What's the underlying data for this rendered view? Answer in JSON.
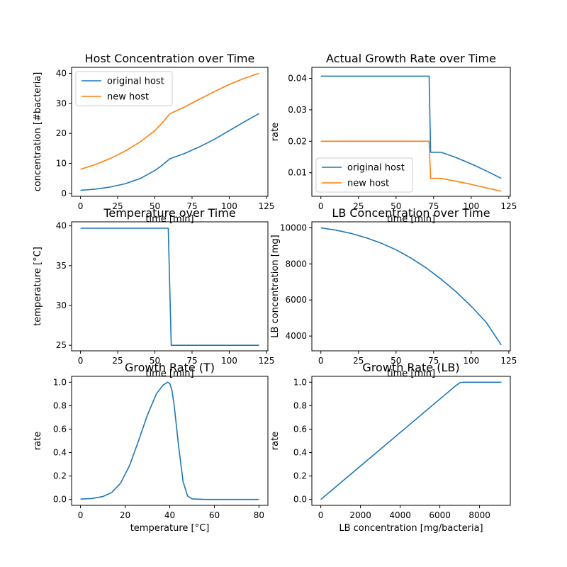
{
  "colors": {
    "series1": "#1f77b4",
    "series2": "#ff7f0e"
  },
  "chart_data": [
    {
      "type": "line",
      "title": "Host Concentration over Time",
      "xlabel": "time [min]",
      "ylabel": "concentration [#bacteria]",
      "xlim": [
        -6,
        126
      ],
      "ylim": [
        -1,
        42
      ],
      "xticks": [
        0,
        25,
        50,
        75,
        100,
        125
      ],
      "yticks": [
        0,
        10,
        20,
        30,
        40
      ],
      "legend": "upper left",
      "series": [
        {
          "name": "original host",
          "x": [
            0,
            10,
            20,
            30,
            40,
            50,
            55,
            60,
            70,
            80,
            90,
            100,
            110,
            120
          ],
          "y": [
            1.0,
            1.4,
            2.1,
            3.2,
            4.9,
            7.6,
            9.4,
            11.5,
            13.3,
            15.5,
            18.0,
            20.9,
            23.8,
            26.6
          ]
        },
        {
          "name": "new host",
          "x": [
            0,
            10,
            20,
            30,
            40,
            50,
            55,
            60,
            70,
            80,
            90,
            100,
            110,
            120
          ],
          "y": [
            8.0,
            9.6,
            11.6,
            14.1,
            17.1,
            20.9,
            23.5,
            26.5,
            28.8,
            31.4,
            33.9,
            36.3,
            38.3,
            40.0
          ]
        }
      ]
    },
    {
      "type": "line",
      "title": "Actual Growth Rate over Time",
      "xlabel": "time [min]",
      "ylabel": "rate",
      "xlim": [
        -6,
        126
      ],
      "ylim": [
        0.0025,
        0.0435
      ],
      "xticks": [
        0,
        25,
        50,
        75,
        100,
        125
      ],
      "yticks": [
        0.01,
        0.02,
        0.03,
        0.04
      ],
      "ytick_labels": [
        "0.01",
        "0.02",
        "0.03",
        "0.04"
      ],
      "legend": "lower left",
      "series": [
        {
          "name": "original host",
          "x": [
            0,
            72,
            73,
            80,
            90,
            100,
            110,
            120
          ],
          "y": [
            0.0407,
            0.0407,
            0.0165,
            0.0165,
            0.0148,
            0.0128,
            0.0106,
            0.0082
          ]
        },
        {
          "name": "new host",
          "x": [
            0,
            72,
            73,
            80,
            90,
            100,
            110,
            120
          ],
          "y": [
            0.02,
            0.02,
            0.0082,
            0.0082,
            0.0073,
            0.0063,
            0.0052,
            0.0041
          ]
        }
      ]
    },
    {
      "type": "line",
      "title": "Temperature over Time",
      "xlabel": "time [min]",
      "ylabel": "temperature [°C]",
      "xlim": [
        -6,
        126
      ],
      "ylim": [
        24.3,
        40.5
      ],
      "xticks": [
        0,
        25,
        50,
        75,
        100,
        125
      ],
      "yticks": [
        25,
        30,
        35,
        40
      ],
      "series": [
        {
          "x": [
            0,
            59,
            61,
            120
          ],
          "y": [
            39.7,
            39.7,
            25,
            25
          ]
        }
      ]
    },
    {
      "type": "line",
      "title": "LB Concentration over Time",
      "xlabel": "time [min]",
      "ylabel": "LB concentration [mg]",
      "xlim": [
        -6,
        126
      ],
      "ylim": [
        3180,
        10330
      ],
      "xticks": [
        0,
        25,
        50,
        75,
        100,
        125
      ],
      "yticks": [
        4000,
        6000,
        8000,
        10000
      ],
      "series": [
        {
          "x": [
            0,
            10,
            20,
            30,
            40,
            50,
            60,
            70,
            80,
            90,
            100,
            110,
            120
          ],
          "y": [
            10000,
            9870,
            9690,
            9450,
            9150,
            8780,
            8320,
            7780,
            7150,
            6450,
            5650,
            4760,
            3500
          ]
        }
      ]
    },
    {
      "type": "line",
      "title": "Growth Rate (T)",
      "xlabel": "temperature [°C]",
      "ylabel": "rate",
      "xlim": [
        -4,
        84
      ],
      "ylim": [
        -0.05,
        1.05
      ],
      "xticks": [
        0,
        20,
        40,
        60,
        80
      ],
      "yticks": [
        0.0,
        0.2,
        0.4,
        0.6,
        0.8,
        1.0
      ],
      "ytick_labels": [
        "0.0",
        "0.2",
        "0.4",
        "0.6",
        "0.8",
        "1.0"
      ],
      "series": [
        {
          "x": [
            0,
            5,
            10,
            14,
            18,
            22,
            26,
            30,
            34,
            37,
            39,
            40,
            41,
            42,
            44,
            46,
            48,
            50,
            55,
            60,
            70,
            80
          ],
          "y": [
            0.003,
            0.008,
            0.025,
            0.06,
            0.14,
            0.29,
            0.5,
            0.72,
            0.9,
            0.975,
            1.0,
            0.99,
            0.93,
            0.8,
            0.45,
            0.15,
            0.03,
            0.005,
            0.001,
            0,
            0,
            0
          ]
        }
      ]
    },
    {
      "type": "line",
      "title": "Growth Rate (LB)",
      "xlabel": "LB concentration [mg/bacteria]",
      "ylabel": "rate",
      "xlim": [
        -450,
        9550
      ],
      "ylim": [
        -0.05,
        1.05
      ],
      "xticks": [
        0,
        2000,
        4000,
        6000,
        8000
      ],
      "yticks": [
        0.0,
        0.2,
        0.4,
        0.6,
        0.8,
        1.0
      ],
      "ytick_labels": [
        "0.0",
        "0.2",
        "0.4",
        "0.6",
        "0.8",
        "1.0"
      ],
      "series": [
        {
          "x": [
            0,
            6800,
            7000,
            7200,
            9100
          ],
          "y": [
            0,
            0.97,
            0.995,
            1.0,
            1.0
          ]
        }
      ]
    }
  ]
}
